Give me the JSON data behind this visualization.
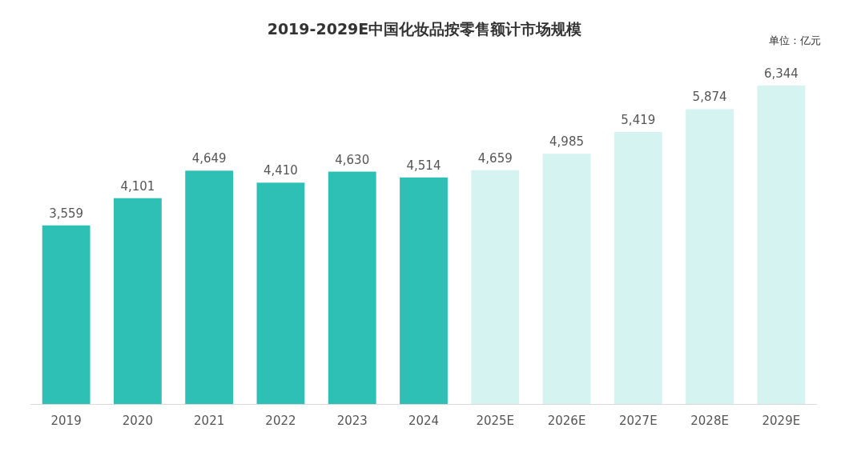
{
  "chart_data": {
    "type": "bar",
    "title": "2019-2029E中国化妆品按零售额计市场规模",
    "annotations": [
      "单位：亿元"
    ],
    "categories": [
      "2019",
      "2020",
      "2021",
      "2022",
      "2023",
      "2024",
      "2025E",
      "2026E",
      "2027E",
      "2028E",
      "2029E"
    ],
    "values": [
      3559,
      4101,
      4649,
      4410,
      4630,
      4514,
      4659,
      4985,
      5419,
      5874,
      6344
    ],
    "value_labels": [
      "3,559",
      "4,101",
      "4,649",
      "4,410",
      "4,630",
      "4,514",
      "4,659",
      "4,985",
      "5,419",
      "5,874",
      "6,344"
    ],
    "colors": [
      "#2ec0b4",
      "#2ec0b4",
      "#2ec0b4",
      "#2ec0b4",
      "#2ec0b4",
      "#2ec0b4",
      "#d5f3f0",
      "#d5f3f0",
      "#d5f3f0",
      "#d5f3f0",
      "#d5f3f0"
    ]
  }
}
